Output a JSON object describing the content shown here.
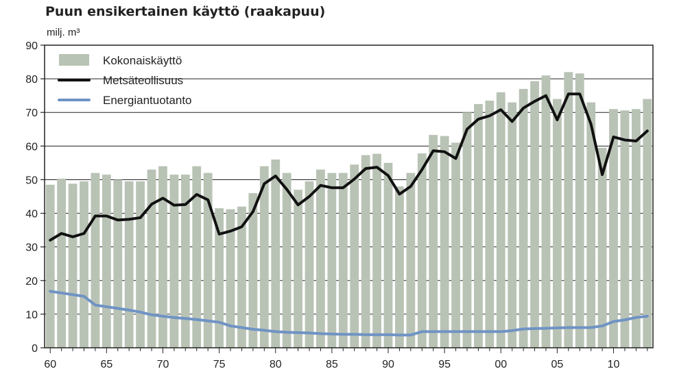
{
  "chart_data": {
    "type": "bar",
    "title": "Puun ensikertainen käyttö (raakapuu)",
    "ylabel": "milj. m³",
    "ylim": [
      0,
      90
    ],
    "yticks": [
      0,
      10,
      20,
      30,
      40,
      50,
      60,
      70,
      80,
      90
    ],
    "xtick_labels": [
      "60",
      "65",
      "70",
      "75",
      "80",
      "85",
      "90",
      "95",
      "00",
      "05",
      "10"
    ],
    "x": [
      1960,
      1961,
      1962,
      1963,
      1964,
      1965,
      1966,
      1967,
      1968,
      1969,
      1970,
      1971,
      1972,
      1973,
      1974,
      1975,
      1976,
      1977,
      1978,
      1979,
      1980,
      1981,
      1982,
      1983,
      1984,
      1985,
      1986,
      1987,
      1988,
      1989,
      1990,
      1991,
      1992,
      1993,
      1994,
      1995,
      1996,
      1997,
      1998,
      1999,
      2000,
      2001,
      2002,
      2003,
      2004,
      2005,
      2006,
      2007,
      2008,
      2009,
      2010,
      2011,
      2012,
      2013
    ],
    "grid": true,
    "legend_position": "top-left",
    "series": [
      {
        "name": "Kokonaiskäyttö",
        "type": "bar",
        "color": "#b9c3b5",
        "values": [
          48.5,
          50.3,
          48.8,
          49.5,
          52,
          51.5,
          50,
          49.5,
          49.5,
          53,
          54,
          51.5,
          51.5,
          54,
          52,
          41.5,
          41.2,
          42,
          46,
          54,
          56,
          52,
          47,
          49.5,
          53,
          52,
          52,
          54.5,
          57.3,
          57.7,
          55,
          48,
          52,
          57.8,
          63.3,
          63,
          61,
          70,
          72.5,
          73.5,
          76,
          73,
          77,
          79.3,
          81,
          74,
          82,
          81.6,
          73,
          59.5,
          71,
          70.6,
          71,
          74
        ]
      },
      {
        "name": "Metsäteollisuus",
        "type": "line",
        "color": "#111111",
        "values": [
          32,
          34,
          33,
          34,
          39.2,
          39.2,
          38,
          38.2,
          38.7,
          42.7,
          44.5,
          42.4,
          42.6,
          45.6,
          44,
          33.8,
          34.7,
          36,
          40.5,
          48.8,
          51.1,
          47.1,
          42.5,
          45,
          48.3,
          47.6,
          47.6,
          50.2,
          53.3,
          53.7,
          51.2,
          45.7,
          48,
          53,
          58.6,
          58.3,
          56.3,
          65,
          68,
          69,
          70.8,
          67.3,
          71.3,
          73.3,
          75,
          67.8,
          75.5,
          75.5,
          66.5,
          51.5,
          62.7,
          61.8,
          61.5,
          64.5
        ]
      },
      {
        "name": "Energiantuotanto",
        "type": "line",
        "color": "#6f93c4",
        "values": [
          16.8,
          16.3,
          15.8,
          15.3,
          12.7,
          12.2,
          11.7,
          11.2,
          10.6,
          9.8,
          9.4,
          9,
          8.7,
          8.4,
          8,
          7.6,
          6.5,
          6,
          5.5,
          5.2,
          4.8,
          4.6,
          4.5,
          4.4,
          4.2,
          4.1,
          4,
          4,
          3.9,
          3.9,
          3.9,
          3.8,
          3.8,
          4.8,
          4.8,
          4.8,
          4.8,
          4.8,
          4.8,
          4.8,
          4.8,
          5.1,
          5.6,
          5.7,
          5.8,
          5.9,
          6,
          6,
          6,
          6.5,
          7.8,
          8.3,
          9.0,
          9.4
        ]
      }
    ]
  }
}
